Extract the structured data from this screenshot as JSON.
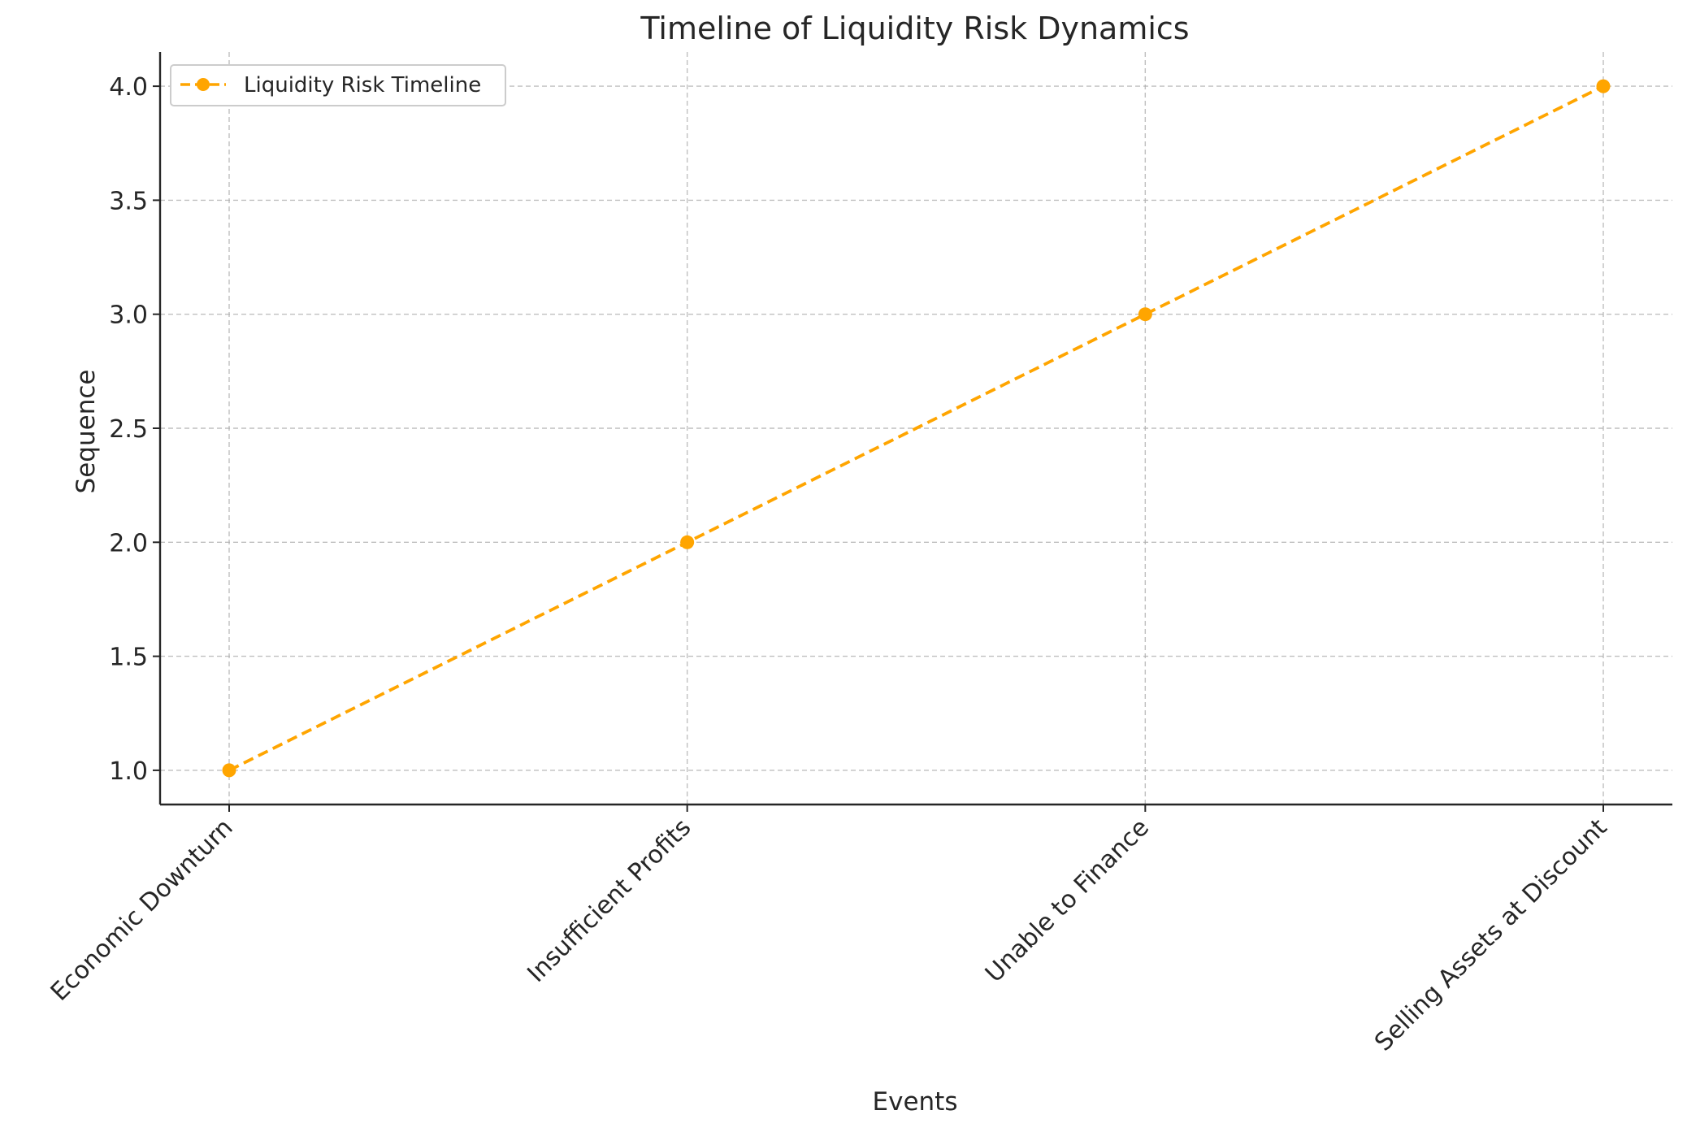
{
  "chart_data": {
    "type": "line",
    "title": "Timeline of Liquidity Risk Dynamics",
    "xlabel": "Events",
    "ylabel": "Sequence",
    "categories": [
      "Economic Downturn",
      "Insufficient Profits",
      "Unable to Finance",
      "Selling Assets at Discount"
    ],
    "series": [
      {
        "name": "Liquidity Risk Timeline",
        "values": [
          1,
          2,
          3,
          4
        ],
        "color": "#FFA500",
        "linestyle": "dashed",
        "marker": "circle"
      }
    ],
    "yticks": [
      "1.0",
      "1.5",
      "2.0",
      "2.5",
      "3.0",
      "3.5",
      "4.0"
    ],
    "ylim": [
      0.85,
      4.15
    ],
    "grid": true,
    "legend_position": "top-left"
  }
}
